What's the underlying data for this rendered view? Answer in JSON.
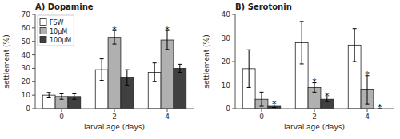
{
  "chart_data": [
    {
      "type": "bar",
      "title": "A) Dopamine",
      "x_label": "larval age (days)",
      "y_label": "settlement (%)",
      "categories": [
        "0",
        "2",
        "4"
      ],
      "series": [
        {
          "name": "FSW",
          "color": "#ffffff",
          "values": [
            10,
            29,
            27
          ],
          "errors": [
            2,
            8,
            7
          ]
        },
        {
          "name": "10μM",
          "color": "#b0b0b0",
          "values": [
            9,
            53,
            51
          ],
          "errors": [
            2,
            5,
            7
          ]
        },
        {
          "name": "100μM",
          "color": "#404040",
          "values": [
            9,
            23,
            30
          ],
          "errors": [
            2,
            6,
            3
          ]
        }
      ],
      "annotations": [
        {
          "text": "*",
          "series": "10μM",
          "category": "2"
        },
        {
          "text": "*",
          "series": "10μM",
          "category": "4"
        }
      ],
      "ylim": [
        0,
        70
      ],
      "yticks": [
        0,
        10,
        20,
        30,
        40,
        50,
        60,
        70
      ],
      "grid": false,
      "legend": "upper left"
    },
    {
      "type": "bar",
      "title": "B) Serotonin",
      "x_label": "larval age (days)",
      "y_label": "settlement (%)",
      "categories": [
        "0",
        "2",
        "4"
      ],
      "series": [
        {
          "name": "FSW",
          "color": "#ffffff",
          "values": [
            17,
            28,
            27
          ],
          "errors": [
            8,
            9,
            7
          ]
        },
        {
          "name": "10μM",
          "color": "#b0b0b0",
          "values": [
            4,
            9,
            8
          ],
          "errors": [
            3,
            2,
            6
          ]
        },
        {
          "name": "100μM",
          "color": "#404040",
          "values": [
            1,
            4,
            0
          ],
          "errors": [
            0.5,
            1,
            0
          ]
        }
      ],
      "annotations": [
        {
          "text": "*",
          "series": "10μM",
          "category": "2"
        },
        {
          "text": "*",
          "series": "10μM",
          "category": "4"
        },
        {
          "text": "*",
          "series": "100μM",
          "category": "0"
        },
        {
          "text": "*",
          "series": "100μM",
          "category": "2"
        },
        {
          "text": "*",
          "series": "100μM",
          "category": "4"
        }
      ],
      "ylim": [
        0,
        40
      ],
      "yticks": [
        0,
        10,
        20,
        30,
        40
      ],
      "grid": false
    }
  ]
}
